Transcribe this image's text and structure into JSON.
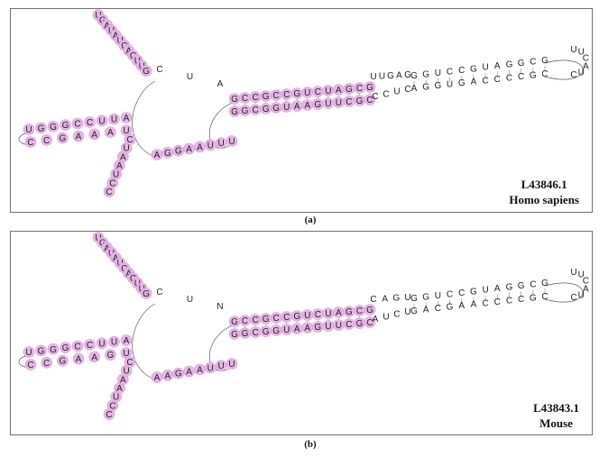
{
  "figure": {
    "panels": [
      {
        "caption": "(a)",
        "accession": "L43846.1",
        "species": "Homo sapiens",
        "highlight_color": "#e6b6e6",
        "stem_ends": {
          "top": "UUGAG",
          "bottom": "CCUC"
        },
        "stems": [
          {
            "top": "GCCGCCGUCUAGCG",
            "bottom": "GGCGGUAAGUUCGC"
          },
          {
            "top": "GGUCCGUAGGCG",
            "bottom": "AGGUGACCCCGC"
          }
        ],
        "left_arm": {
          "top": "UGGGCCUUA",
          "bottom": "CCGAAAU"
        },
        "up_arm": "UGAUAUCACUUG",
        "down_arm": "CCUAAUC",
        "junction": "AGGAAUUU",
        "tail": "CUA",
        "hairpin": "UUCAUC"
      },
      {
        "caption": "(b)",
        "accession": "L43843.1",
        "species": "Mouse",
        "highlight_color": "#e6b6e6",
        "stem_ends": {
          "top": "CAGU",
          "bottom": "AUCU"
        },
        "stems": [
          {
            "top": "GCCGCCGUCUAGCG",
            "bottom": "GGCGGUAAGUUCGC"
          },
          {
            "top": "GGUCCGUAGGCG",
            "bottom": "GACGAACCCCGC"
          }
        ],
        "left_arm": {
          "top": "UGGGCCUUA",
          "bottom": "CCGAAGU"
        },
        "up_arm": "UGAUAUCACUUG",
        "down_arm": "CCUAAUC",
        "junction": "AAGAAUUU",
        "tail": "CUN",
        "hairpin": "UUCAUC"
      }
    ]
  }
}
